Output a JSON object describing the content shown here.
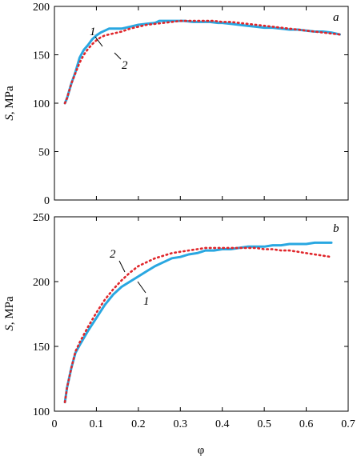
{
  "chart_data": [
    {
      "type": "line",
      "panel_label": "a",
      "xlim": [
        0,
        0.7
      ],
      "ylim": [
        0,
        200
      ],
      "y_ticks": [
        0,
        50,
        100,
        150,
        200
      ],
      "ylabel_italic": "S",
      "ylabel_rest": ", MPa",
      "grid": false,
      "legend": "none",
      "series": [
        {
          "name": "1",
          "color": "#29a7e1",
          "style": "solid",
          "x": [
            0.025,
            0.03,
            0.04,
            0.05,
            0.06,
            0.07,
            0.08,
            0.09,
            0.1,
            0.11,
            0.12,
            0.13,
            0.14,
            0.16,
            0.18,
            0.2,
            0.22,
            0.24,
            0.25,
            0.27,
            0.29,
            0.31,
            0.33,
            0.35,
            0.37,
            0.39,
            0.4,
            0.42,
            0.44,
            0.46,
            0.48,
            0.5,
            0.52,
            0.54,
            0.56,
            0.58,
            0.6,
            0.62,
            0.64,
            0.66,
            0.68
          ],
          "y": [
            100,
            105,
            120,
            132,
            147,
            155,
            160,
            166,
            170,
            173,
            175,
            177,
            177,
            177,
            179,
            181,
            182,
            183,
            185,
            185,
            185,
            185,
            184,
            184,
            184,
            183,
            183,
            182,
            181,
            180,
            179,
            178,
            178,
            177,
            176,
            176,
            175,
            174,
            174,
            173,
            171
          ]
        },
        {
          "name": "2",
          "color": "#e0262b",
          "style": "dotted",
          "x": [
            0.025,
            0.03,
            0.04,
            0.05,
            0.06,
            0.07,
            0.08,
            0.09,
            0.1,
            0.11,
            0.12,
            0.13,
            0.14,
            0.16,
            0.18,
            0.2,
            0.22,
            0.24,
            0.26,
            0.28,
            0.3,
            0.32,
            0.34,
            0.36,
            0.38,
            0.4,
            0.42,
            0.44,
            0.46,
            0.48,
            0.5,
            0.52,
            0.54,
            0.56,
            0.58,
            0.6,
            0.62,
            0.64,
            0.66,
            0.68
          ],
          "y": [
            100,
            105,
            120,
            131,
            142,
            150,
            156,
            161,
            165,
            168,
            170,
            171,
            172,
            174,
            177,
            179,
            181,
            182,
            183,
            184,
            185,
            185,
            185,
            185,
            185,
            184,
            184,
            183,
            182,
            181,
            180,
            179,
            178,
            177,
            176,
            175,
            174,
            173,
            172,
            171
          ]
        }
      ],
      "annotations": [
        "1",
        "2"
      ]
    },
    {
      "type": "line",
      "panel_label": "b",
      "xlim": [
        0,
        0.7
      ],
      "ylim": [
        100,
        250
      ],
      "x_ticks": [
        0,
        0.1,
        0.2,
        0.3,
        0.4,
        0.5,
        0.6,
        0.7
      ],
      "x_tick_labels": [
        "0",
        "0.1",
        "0.2",
        "0.3",
        "0.4",
        "0.5",
        "0.6",
        "0.7"
      ],
      "y_ticks": [
        100,
        150,
        200,
        250
      ],
      "xlabel": "φ",
      "ylabel_italic": "S",
      "ylabel_rest": ", MPa",
      "grid": false,
      "legend": "none",
      "series": [
        {
          "name": "1",
          "color": "#29a7e1",
          "style": "solid",
          "x": [
            0.025,
            0.03,
            0.04,
            0.05,
            0.06,
            0.08,
            0.1,
            0.12,
            0.14,
            0.16,
            0.18,
            0.2,
            0.22,
            0.24,
            0.26,
            0.28,
            0.3,
            0.32,
            0.34,
            0.36,
            0.38,
            0.4,
            0.42,
            0.44,
            0.46,
            0.48,
            0.5,
            0.52,
            0.54,
            0.56,
            0.58,
            0.6,
            0.62,
            0.64,
            0.66
          ],
          "y": [
            107,
            118,
            133,
            145,
            151,
            162,
            172,
            182,
            190,
            196,
            200,
            204,
            208,
            212,
            215,
            218,
            219,
            221,
            222,
            224,
            224,
            225,
            225,
            226,
            227,
            227,
            227,
            228,
            228,
            229,
            229,
            229,
            230,
            230,
            230
          ]
        },
        {
          "name": "2",
          "color": "#e0262b",
          "style": "dotted",
          "x": [
            0.025,
            0.03,
            0.04,
            0.05,
            0.06,
            0.08,
            0.1,
            0.12,
            0.14,
            0.16,
            0.18,
            0.2,
            0.22,
            0.24,
            0.26,
            0.28,
            0.3,
            0.32,
            0.34,
            0.36,
            0.38,
            0.4,
            0.42,
            0.44,
            0.46,
            0.48,
            0.5,
            0.52,
            0.54,
            0.56,
            0.58,
            0.6,
            0.62,
            0.64,
            0.66
          ],
          "y": [
            107,
            118,
            133,
            146,
            153,
            165,
            176,
            186,
            194,
            201,
            207,
            212,
            215,
            218,
            220,
            222,
            223,
            224,
            225,
            226,
            226,
            226,
            226,
            226,
            226,
            226,
            225,
            225,
            224,
            224,
            223,
            222,
            221,
            220,
            219
          ]
        }
      ],
      "annotations": [
        "2",
        "1"
      ]
    }
  ]
}
